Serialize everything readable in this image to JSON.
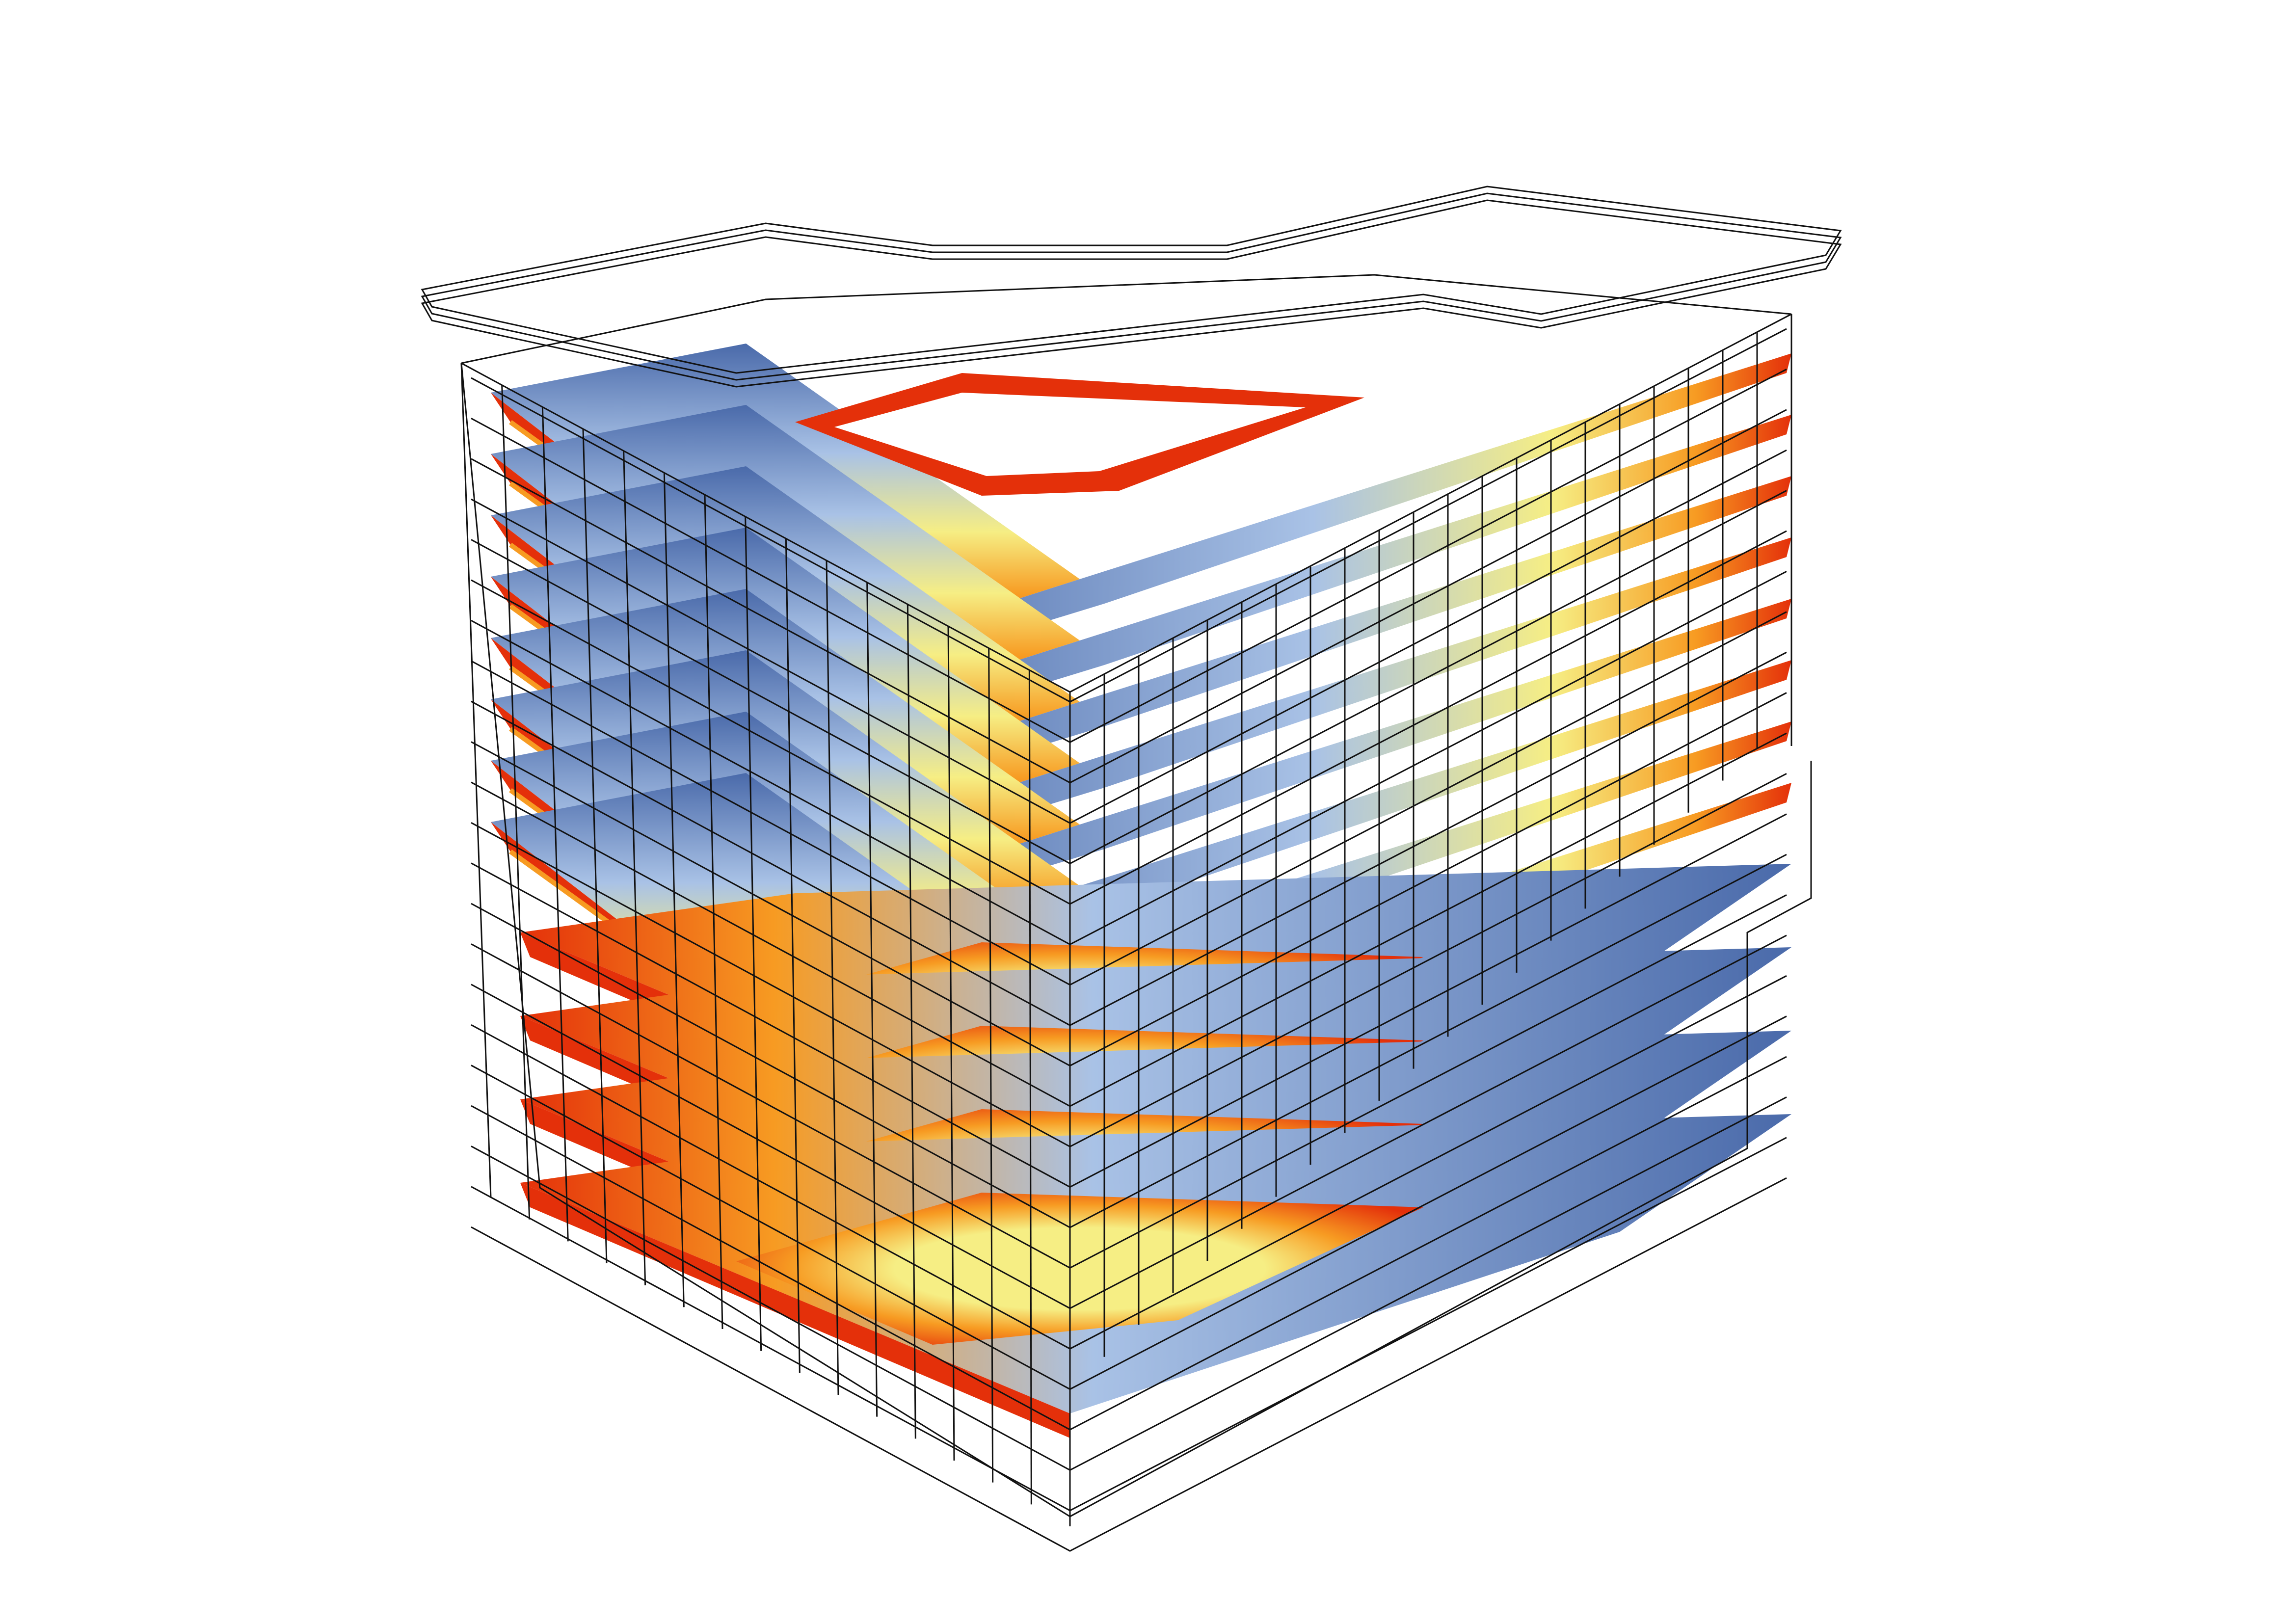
{
  "figure": {
    "kind": "isometric daylight-distribution model of a multi-storey building",
    "colors": {
      "background": "#ffffff",
      "wireframe": "#111111",
      "low": "#4a6aaa",
      "low_mid": "#a9c2e6",
      "mid": "#f6ee84",
      "high_mid": "#f79b22",
      "high": "#e4300a"
    },
    "upper_floor_count": 8,
    "lower_floor_count": 4,
    "has_roof_outline": true,
    "has_atrium_void": true
  }
}
